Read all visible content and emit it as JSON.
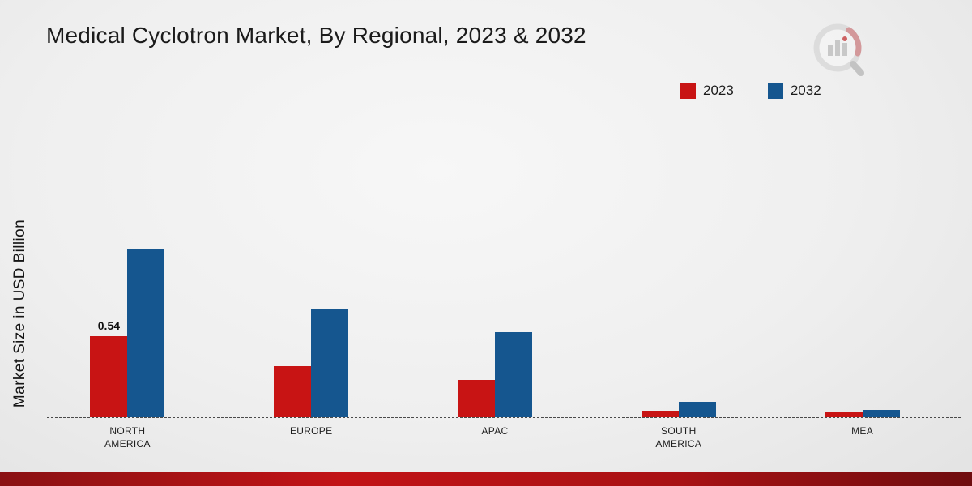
{
  "page": {
    "title": "Medical Cyclotron Market, By Regional, 2023 & 2032"
  },
  "colors": {
    "series_2023": "#c81414",
    "series_2032": "#15568f",
    "footer": "#a81114"
  },
  "chart_data": {
    "type": "bar",
    "title": "Medical Cyclotron Market, By Regional, 2023 & 2032",
    "xlabel": "",
    "ylabel": "Market Size in USD Billion",
    "ylim": [
      0,
      1.2
    ],
    "grid": false,
    "baseline_style": "dashed",
    "legend_position": "top-right",
    "categories": [
      "NORTH AMERICA",
      "EUROPE",
      "APAC",
      "SOUTH AMERICA",
      "MEA"
    ],
    "series": [
      {
        "name": "2023",
        "color": "#c81414",
        "values": [
          0.54,
          0.34,
          0.25,
          0.04,
          0.03
        ],
        "labels": [
          "0.54",
          null,
          null,
          null,
          null
        ]
      },
      {
        "name": "2032",
        "color": "#15568f",
        "values": [
          1.12,
          0.72,
          0.57,
          0.1,
          0.05
        ],
        "labels": [
          null,
          null,
          null,
          null,
          null
        ]
      }
    ]
  }
}
